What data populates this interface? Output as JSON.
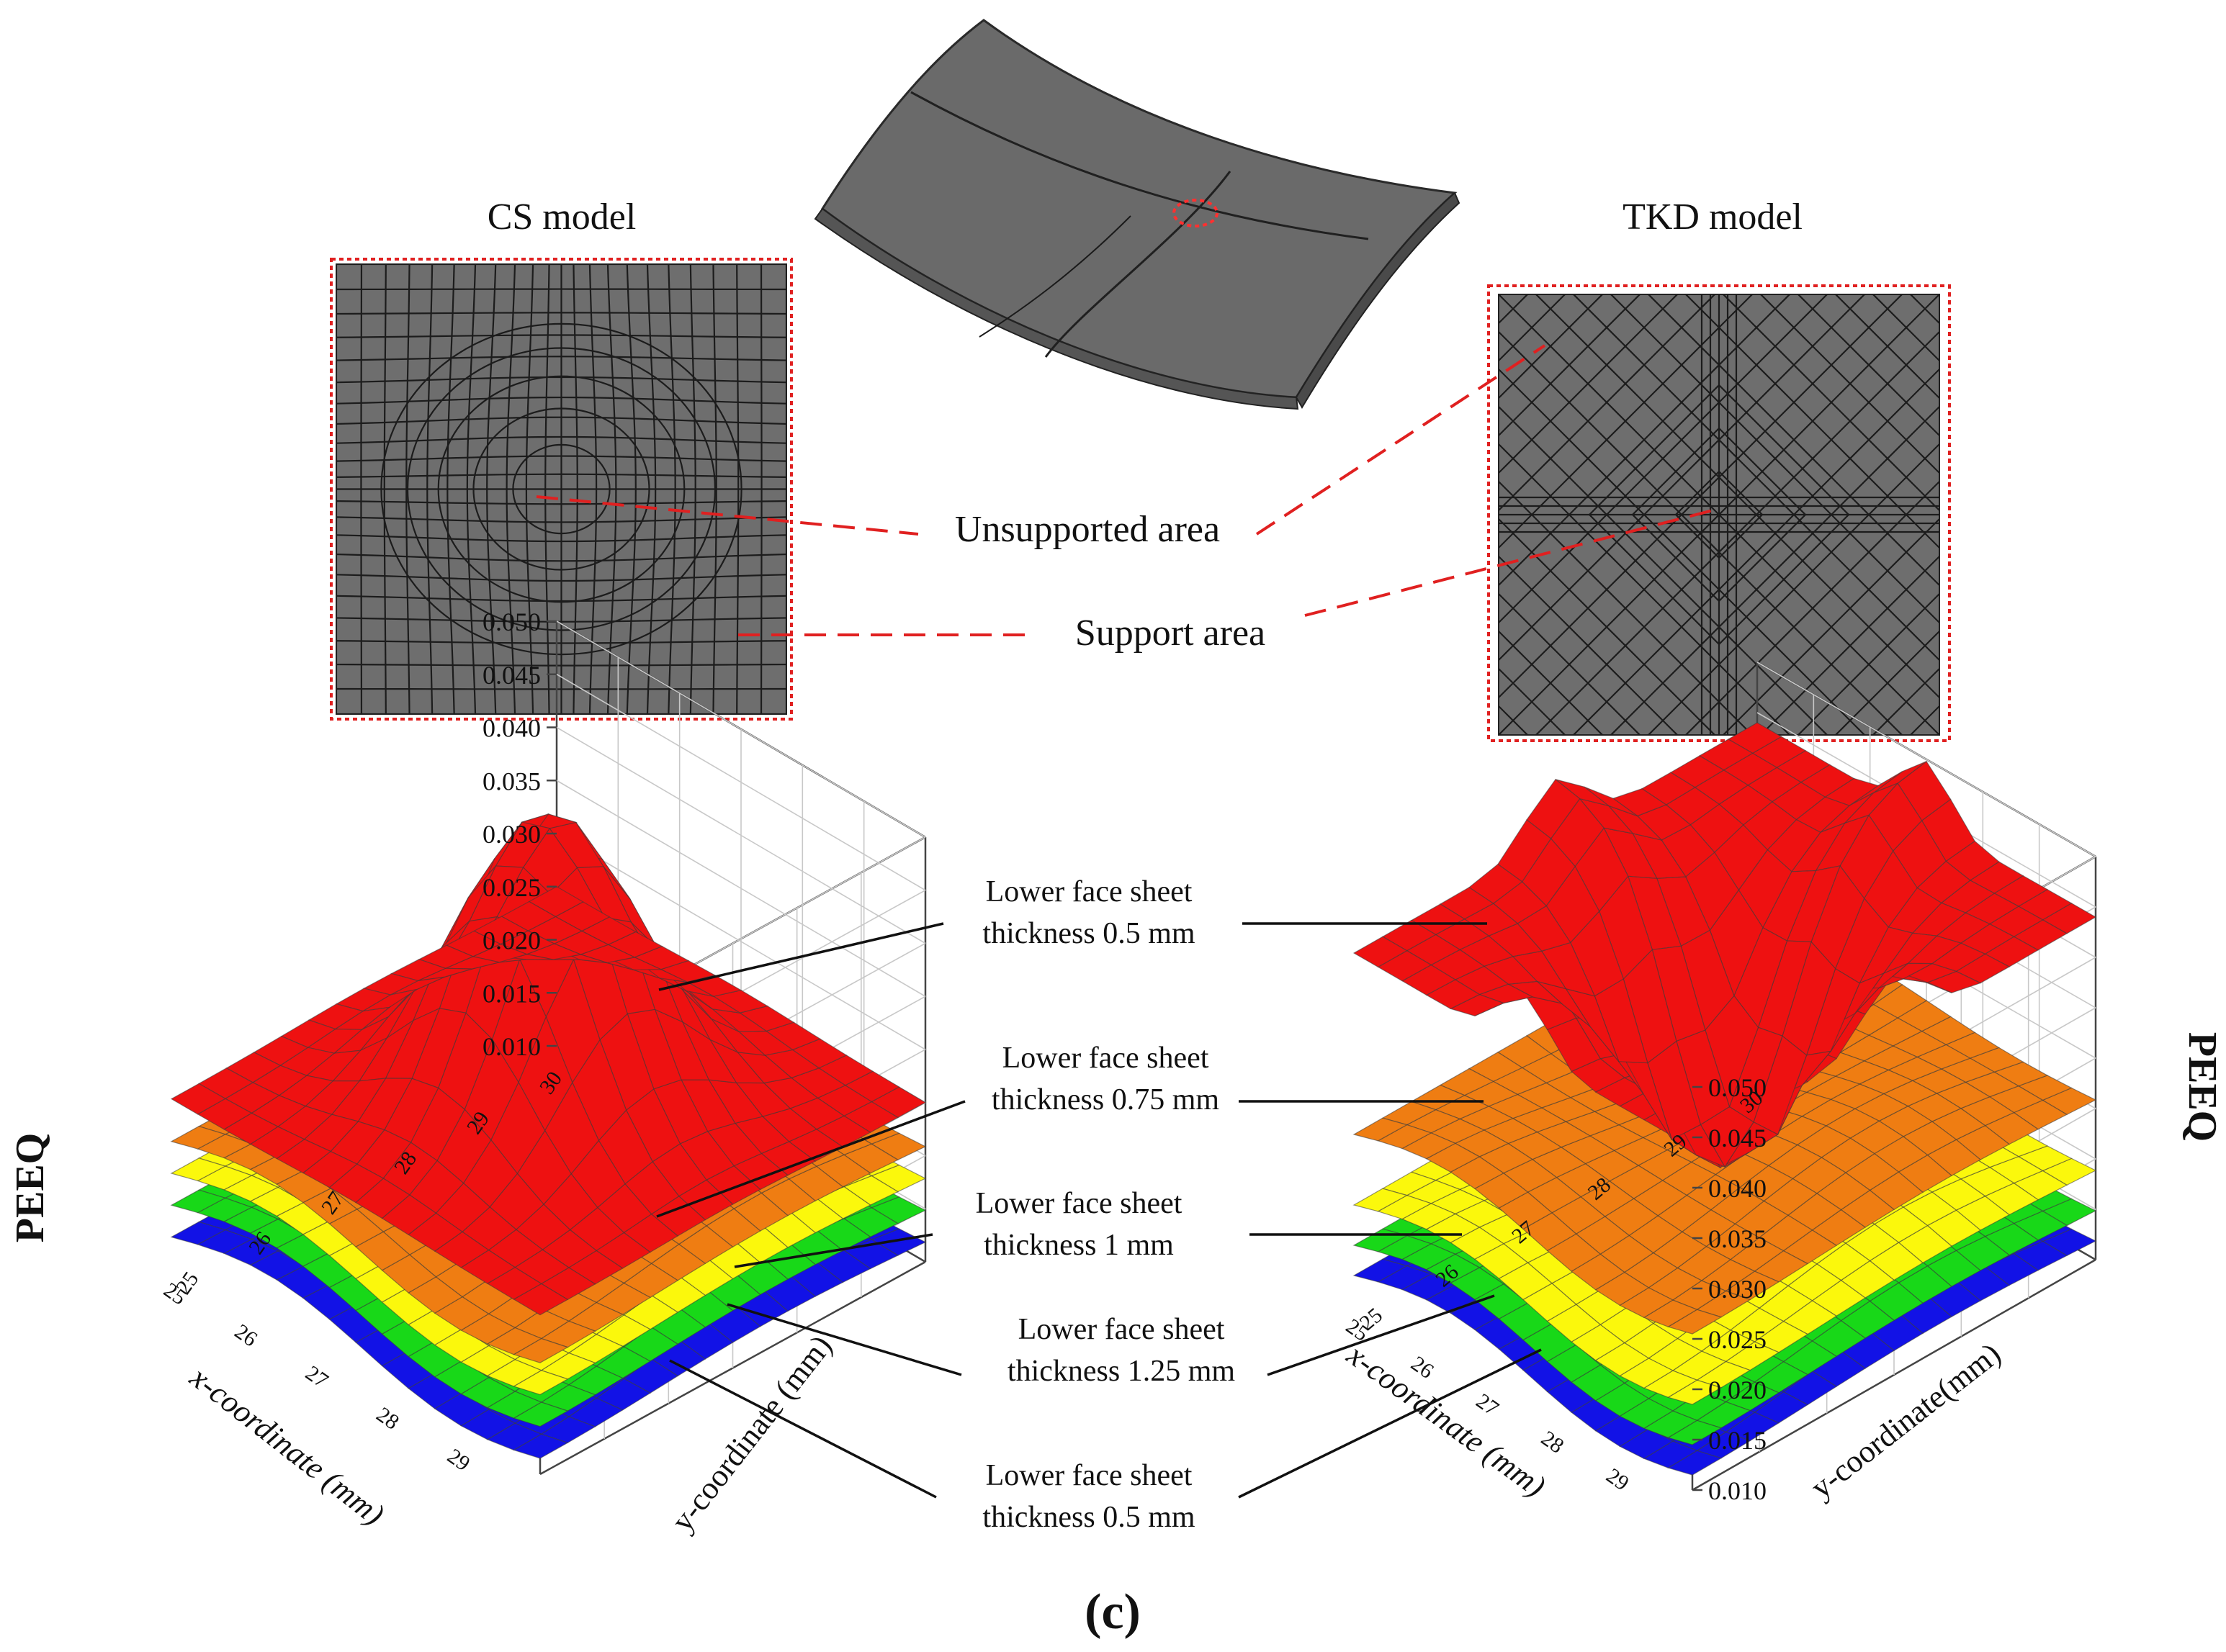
{
  "panels": {
    "cs_title": "CS model",
    "tkd_title": "TKD model",
    "unsupported_label": "Unsupported area",
    "support_label": "Support area",
    "caption": "(c)"
  },
  "annotations": {
    "left_col": [
      [
        "Lower face sheet",
        "thickness 0.5 mm"
      ],
      [
        "Lower face sheet",
        "thickness 0.75 mm"
      ],
      [
        "Lower face sheet",
        "thickness 1 mm"
      ],
      [
        "Lower face sheet",
        "thickness 1.25 mm"
      ],
      [
        "Lower face sheet",
        "thickness 0.5 mm"
      ]
    ]
  },
  "colors": {
    "red": "#ee1111",
    "orange": "#ef7d12",
    "yellow": "#fbf80c",
    "green": "#18d818",
    "blue": "#1212e6",
    "mesh_fill": "#6e6e6e",
    "dash": "#e02020"
  },
  "chart_data": [
    {
      "type": "surface",
      "title": "CS model",
      "zlabel": "PEEQ",
      "xlabel": "x-coordinate (mm)",
      "ylabel": "y-coordinate (mm)",
      "z_ticks": [
        "0.010",
        "0.015",
        "0.020",
        "0.025",
        "0.030",
        "0.035",
        "0.040",
        "0.045",
        "0.050"
      ],
      "x_ticks": [
        "25",
        "26",
        "27",
        "28",
        "29"
      ],
      "y_ticks": [
        "25",
        "26",
        "27",
        "28",
        "29",
        "30"
      ],
      "series": [
        {
          "name": "Lower face sheet thickness 0.5 mm",
          "color": "#ee1111",
          "shape": "peak",
          "base": 0.025,
          "peak": 0.052
        },
        {
          "name": "Lower face sheet thickness 0.75 mm",
          "color": "#ef7d12",
          "shape": "flat",
          "base": 0.021
        },
        {
          "name": "Lower face sheet thickness 1 mm",
          "color": "#fbf80c",
          "shape": "flat",
          "base": 0.018
        },
        {
          "name": "Lower face sheet thickness 1.25 mm",
          "color": "#18d818",
          "shape": "flat",
          "base": 0.015
        },
        {
          "name": "Lower face sheet thickness 0.5 mm",
          "color": "#1212e6",
          "shape": "flat",
          "base": 0.012
        }
      ]
    },
    {
      "type": "surface",
      "title": "TKD model",
      "zlabel": "PEEQ",
      "xlabel": "x-coordinate (mm)",
      "ylabel": "y-coordinate(mm)",
      "z_ticks": [
        "0.010",
        "0.015",
        "0.020",
        "0.025",
        "0.030",
        "0.035",
        "0.040",
        "0.045",
        "0.050"
      ],
      "x_ticks": [
        "25",
        "26",
        "27",
        "28",
        "29"
      ],
      "y_ticks": [
        "25",
        "26",
        "27",
        "28",
        "29",
        "30"
      ],
      "series": [
        {
          "name": "Lower face sheet thickness 0.5 mm",
          "color": "#ee1111",
          "shape": "valley",
          "base": 0.05,
          "min": 0.021
        },
        {
          "name": "Lower face sheet thickness 0.75 mm",
          "color": "#ef7d12",
          "shape": "flat",
          "base": 0.026
        },
        {
          "name": "Lower face sheet thickness 1 mm",
          "color": "#fbf80c",
          "shape": "flat",
          "base": 0.019
        },
        {
          "name": "Lower face sheet thickness 1.25 mm",
          "color": "#18d818",
          "shape": "flat",
          "base": 0.015
        },
        {
          "name": "Lower face sheet thickness 0.5 mm",
          "color": "#1212e6",
          "shape": "flat",
          "base": 0.012
        }
      ]
    }
  ]
}
